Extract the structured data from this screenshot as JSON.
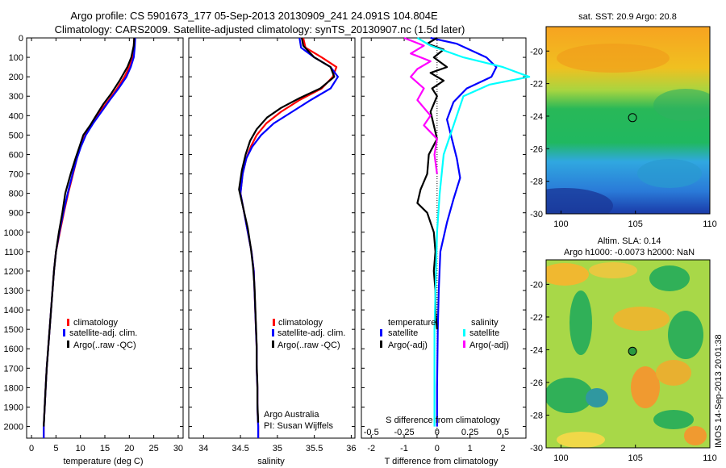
{
  "header": {
    "line1": "Argo profile: CS 5901673_177 05-Sep-2013 20130909_241 24.091S 104.804E",
    "line2": "Climatology: CARS2009. Satellite-adjusted climatology: synTS_20130907.nc (1.5d later)"
  },
  "colors": {
    "climatology": "#ff0000",
    "satellite_adj": "#0000ff",
    "argo": "#000000",
    "salinity_satellite": "#00ffff",
    "salinity_argo": "#ff00ff"
  },
  "depth_ticks": [
    "0",
    "100",
    "200",
    "300",
    "400",
    "500",
    "600",
    "700",
    "800",
    "900",
    "1000",
    "1100",
    "1200",
    "1300",
    "1400",
    "1500",
    "1600",
    "1700",
    "1800",
    "1900",
    "2000"
  ],
  "notes": {
    "argo_australia": "Argo Australia",
    "pi": "PI: Susan Wijffels",
    "timestamp": "IMOS 14-Sep-2013 20:01:38"
  },
  "chart_data": [
    {
      "type": "line",
      "xlabel": "temperature (deg C)",
      "xlim": [
        -1,
        31
      ],
      "ylim": [
        2060,
        0
      ],
      "xticks": [
        "0",
        "5",
        "10",
        "15",
        "20",
        "25",
        "30"
      ],
      "legend": [
        "climatology",
        "satellite-adj. clim.",
        "Argo(..raw -QC)"
      ],
      "series": [
        {
          "name": "climatology",
          "color": "red",
          "points": [
            [
              21.0,
              0
            ],
            [
              20.9,
              50
            ],
            [
              20.7,
              100
            ],
            [
              20.0,
              150
            ],
            [
              19.0,
              200
            ],
            [
              17.5,
              260
            ],
            [
              15.8,
              320
            ],
            [
              14.0,
              380
            ],
            [
              12.5,
              440
            ],
            [
              11.0,
              500
            ],
            [
              10.0,
              560
            ],
            [
              9.3,
              620
            ],
            [
              8.5,
              700
            ],
            [
              7.5,
              800
            ],
            [
              6.6,
              900
            ],
            [
              5.8,
              1000
            ],
            [
              5.0,
              1100
            ],
            [
              4.6,
              1200
            ],
            [
              4.3,
              1300
            ],
            [
              4.0,
              1400
            ],
            [
              3.7,
              1500
            ],
            [
              3.4,
              1600
            ],
            [
              3.1,
              1700
            ],
            [
              2.9,
              1800
            ],
            [
              2.7,
              1900
            ],
            [
              2.5,
              2000
            ],
            [
              2.5,
              2060
            ]
          ]
        },
        {
          "name": "satellite-adj. clim.",
          "color": "blue",
          "points": [
            [
              21.2,
              0
            ],
            [
              21.1,
              50
            ],
            [
              20.9,
              100
            ],
            [
              20.3,
              150
            ],
            [
              19.4,
              200
            ],
            [
              17.8,
              260
            ],
            [
              16.0,
              320
            ],
            [
              14.3,
              380
            ],
            [
              12.6,
              440
            ],
            [
              11.1,
              500
            ],
            [
              10.1,
              560
            ],
            [
              9.3,
              620
            ],
            [
              8.4,
              700
            ],
            [
              7.4,
              800
            ],
            [
              6.5,
              900
            ],
            [
              5.7,
              1000
            ],
            [
              5.0,
              1100
            ],
            [
              4.6,
              1200
            ],
            [
              4.3,
              1300
            ],
            [
              4.0,
              1400
            ],
            [
              3.7,
              1500
            ],
            [
              3.4,
              1600
            ],
            [
              3.1,
              1700
            ],
            [
              2.9,
              1800
            ],
            [
              2.7,
              1900
            ],
            [
              2.5,
              2000
            ],
            [
              2.5,
              2060
            ]
          ]
        },
        {
          "name": "Argo(..raw -QC)",
          "color": "black",
          "points": [
            [
              21.0,
              0
            ],
            [
              20.9,
              40
            ],
            [
              20.4,
              100
            ],
            [
              19.6,
              150
            ],
            [
              18.0,
              220
            ],
            [
              16.2,
              290
            ],
            [
              14.7,
              340
            ],
            [
              13.2,
              400
            ],
            [
              12.0,
              450
            ],
            [
              10.6,
              500
            ],
            [
              9.8,
              560
            ],
            [
              9.0,
              620
            ],
            [
              8.0,
              700
            ],
            [
              6.9,
              800
            ],
            [
              6.3,
              900
            ],
            [
              5.6,
              1000
            ],
            [
              5.0,
              1100
            ],
            [
              4.6,
              1200
            ],
            [
              4.3,
              1300
            ],
            [
              4.0,
              1400
            ],
            [
              3.7,
              1500
            ],
            [
              3.4,
              1600
            ],
            [
              3.1,
              1700
            ],
            [
              2.9,
              1800
            ],
            [
              2.7,
              1900
            ],
            [
              2.5,
              2000
            ]
          ]
        }
      ]
    },
    {
      "type": "line",
      "xlabel": "salinity",
      "xlim": [
        33.8,
        36.05
      ],
      "ylim": [
        2060,
        0
      ],
      "xticks": [
        "34",
        "34.5",
        "35",
        "35.5",
        "36"
      ],
      "legend": [
        "climatology",
        "satellite-adj. clim.",
        "Argo(..raw -QC)"
      ],
      "series": [
        {
          "name": "climatology",
          "color": "red",
          "points": [
            [
              35.35,
              0
            ],
            [
              35.38,
              50
            ],
            [
              35.6,
              100
            ],
            [
              35.8,
              150
            ],
            [
              35.75,
              200
            ],
            [
              35.6,
              260
            ],
            [
              35.3,
              320
            ],
            [
              35.05,
              380
            ],
            [
              34.85,
              440
            ],
            [
              34.72,
              500
            ],
            [
              34.64,
              560
            ],
            [
              34.58,
              620
            ],
            [
              34.53,
              700
            ],
            [
              34.5,
              800
            ],
            [
              34.55,
              900
            ],
            [
              34.6,
              1000
            ],
            [
              34.65,
              1100
            ],
            [
              34.68,
              1200
            ],
            [
              34.69,
              1300
            ],
            [
              34.7,
              1400
            ],
            [
              34.71,
              1500
            ],
            [
              34.72,
              1600
            ],
            [
              34.72,
              1700
            ],
            [
              34.73,
              1800
            ],
            [
              34.73,
              1900
            ],
            [
              34.74,
              2000
            ],
            [
              34.74,
              2060
            ]
          ]
        },
        {
          "name": "satellite-adj. clim.",
          "color": "blue",
          "points": [
            [
              35.3,
              0
            ],
            [
              35.32,
              50
            ],
            [
              35.5,
              100
            ],
            [
              35.72,
              150
            ],
            [
              35.82,
              200
            ],
            [
              35.72,
              260
            ],
            [
              35.45,
              320
            ],
            [
              35.2,
              380
            ],
            [
              34.95,
              440
            ],
            [
              34.78,
              500
            ],
            [
              34.66,
              560
            ],
            [
              34.58,
              620
            ],
            [
              34.53,
              700
            ],
            [
              34.5,
              800
            ],
            [
              34.55,
              900
            ],
            [
              34.6,
              1000
            ],
            [
              34.65,
              1100
            ],
            [
              34.68,
              1200
            ],
            [
              34.69,
              1300
            ],
            [
              34.7,
              1400
            ],
            [
              34.71,
              1500
            ],
            [
              34.72,
              1600
            ],
            [
              34.72,
              1700
            ],
            [
              34.73,
              1800
            ],
            [
              34.73,
              1900
            ],
            [
              34.74,
              2000
            ],
            [
              34.74,
              2060
            ]
          ]
        },
        {
          "name": "Argo(..raw -QC)",
          "color": "black",
          "points": [
            [
              35.33,
              0
            ],
            [
              35.35,
              40
            ],
            [
              35.5,
              100
            ],
            [
              35.72,
              150
            ],
            [
              35.77,
              200
            ],
            [
              35.58,
              260
            ],
            [
              35.3,
              310
            ],
            [
              35.05,
              360
            ],
            [
              34.86,
              410
            ],
            [
              34.72,
              470
            ],
            [
              34.63,
              530
            ],
            [
              34.57,
              600
            ],
            [
              34.52,
              680
            ],
            [
              34.48,
              780
            ],
            [
              34.54,
              880
            ],
            [
              34.6,
              980
            ],
            [
              34.64,
              1080
            ],
            [
              34.67,
              1180
            ],
            [
              34.69,
              1280
            ],
            [
              34.7,
              1380
            ],
            [
              34.71,
              1480
            ],
            [
              34.72,
              1580
            ],
            [
              34.72,
              1680
            ],
            [
              34.73,
              1780
            ],
            [
              34.73,
              1880
            ],
            [
              34.74,
              1980
            ]
          ]
        }
      ]
    },
    {
      "type": "line",
      "xlabel": "T difference from climatology",
      "secondary_xlabel": "S difference from climatology",
      "xlim": [
        -2.3,
        2.7
      ],
      "ylim": [
        2060,
        0
      ],
      "xticks": [
        "-2",
        "-1",
        "0",
        "1",
        "2"
      ],
      "secondary_xticks": [
        "-0.5",
        "-0.25",
        "0",
        "0.25",
        "0.5"
      ],
      "legend_groups": {
        "temperature": [
          "satellite",
          "Argo(-adj)"
        ],
        "salinity": [
          "satellite",
          "Argo(-adj)"
        ]
      },
      "series": [
        {
          "name": "satellite",
          "group": "temperature",
          "color": "blue",
          "points": [
            [
              -0.2,
              0
            ],
            [
              0.6,
              30
            ],
            [
              1.5,
              100
            ],
            [
              1.8,
              150
            ],
            [
              1.65,
              200
            ],
            [
              0.9,
              260
            ],
            [
              0.5,
              330
            ],
            [
              0.3,
              420
            ],
            [
              0.45,
              520
            ],
            [
              0.6,
              620
            ],
            [
              0.7,
              720
            ],
            [
              0.5,
              830
            ],
            [
              0.3,
              950
            ],
            [
              0.1,
              1100
            ],
            [
              0.05,
              1300
            ],
            [
              0.02,
              1500
            ],
            [
              0.0,
              1800
            ],
            [
              0.0,
              2000
            ]
          ]
        },
        {
          "name": "Argo(-adj)",
          "group": "temperature",
          "color": "black",
          "points": [
            [
              0,
              0
            ],
            [
              -0.3,
              30
            ],
            [
              0.2,
              60
            ],
            [
              -0.1,
              100
            ],
            [
              0.3,
              150
            ],
            [
              -0.2,
              180
            ],
            [
              0.2,
              220
            ],
            [
              -0.15,
              260
            ],
            [
              0.0,
              300
            ],
            [
              -0.2,
              380
            ],
            [
              -0.1,
              450
            ],
            [
              0.0,
              520
            ],
            [
              -0.25,
              600
            ],
            [
              -0.3,
              700
            ],
            [
              -0.5,
              780
            ],
            [
              -0.6,
              850
            ],
            [
              -0.3,
              900
            ],
            [
              -0.1,
              1000
            ],
            [
              -0.05,
              1100
            ],
            [
              -0.1,
              1200
            ],
            [
              -0.05,
              1300
            ],
            [
              -0.05,
              1400
            ],
            [
              0.0,
              1500
            ]
          ]
        },
        {
          "name": "satellite",
          "group": "salinity",
          "color": "cyan",
          "points": [
            [
              -0.15,
              0
            ],
            [
              -0.05,
              40
            ],
            [
              0.2,
              100
            ],
            [
              0.5,
              150
            ],
            [
              0.7,
              200
            ],
            [
              0.4,
              240
            ],
            [
              0.2,
              300
            ],
            [
              0.15,
              400
            ],
            [
              0.1,
              500
            ],
            [
              0.05,
              600
            ],
            [
              0.02,
              800
            ],
            [
              0.0,
              1000
            ],
            [
              -0.02,
              1500
            ],
            [
              -0.02,
              2000
            ]
          ]
        },
        {
          "name": "Argo(-adj)",
          "group": "salinity",
          "color": "magenta",
          "points": [
            [
              -0.25,
              0
            ],
            [
              -0.1,
              40
            ],
            [
              -0.2,
              80
            ],
            [
              -0.05,
              120
            ],
            [
              -0.15,
              160
            ],
            [
              -0.2,
              200
            ],
            [
              -0.1,
              260
            ],
            [
              -0.15,
              320
            ],
            [
              -0.05,
              400
            ],
            [
              -0.1,
              450
            ],
            [
              0.0,
              520
            ],
            [
              -0.02,
              600
            ],
            [
              0.0,
              700
            ]
          ]
        }
      ]
    },
    {
      "type": "heatmap",
      "title": "sat. SST: 20.9  Argo: 20.8",
      "xlim": [
        99,
        110
      ],
      "ylim": [
        -30,
        -18.5
      ],
      "xticks": [
        "100",
        "105",
        "110"
      ],
      "yticks": [
        "-20",
        "-22",
        "-24",
        "-26",
        "-28",
        "-30"
      ],
      "marker": [
        104.804,
        -24.091
      ]
    },
    {
      "type": "heatmap",
      "title_line1": "Altim. SLA: 0.14",
      "title_line2": "Argo h1000: -0.0073 h2000: NaN",
      "xlim": [
        99,
        110
      ],
      "ylim": [
        -30,
        -18.5
      ],
      "xticks": [
        "100",
        "105",
        "110"
      ],
      "yticks": [
        "-20",
        "-22",
        "-24",
        "-26",
        "-28",
        "-30"
      ],
      "marker": [
        104.804,
        -24.091
      ]
    }
  ]
}
